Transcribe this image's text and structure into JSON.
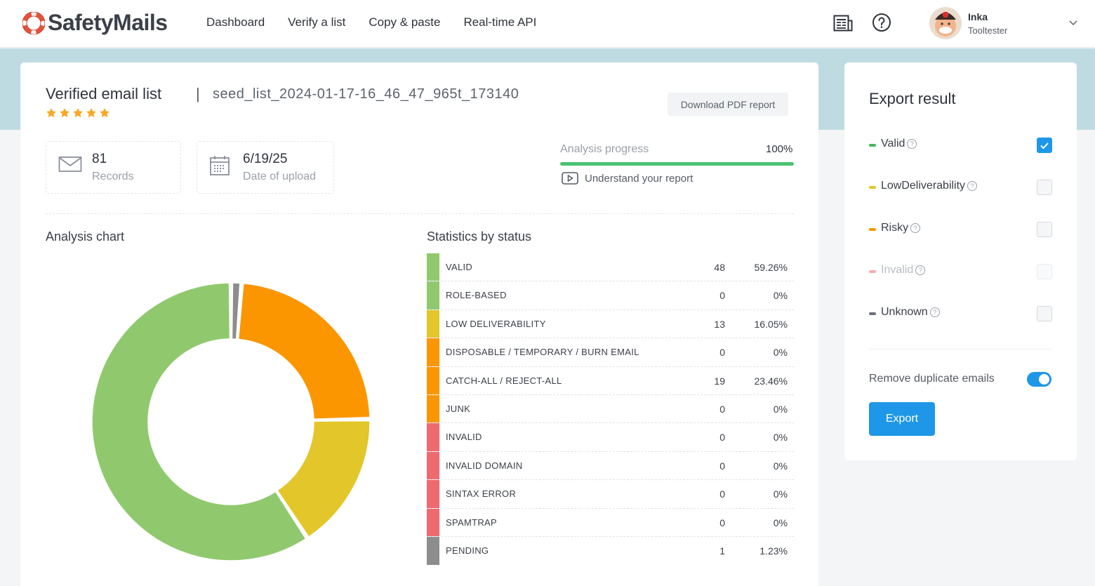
{
  "brand": {
    "name": "SafetyMails"
  },
  "nav": [
    "Dashboard",
    "Verify a list",
    "Copy & paste",
    "Real-time API"
  ],
  "header_icons": [
    "plans-icon",
    "help-icon"
  ],
  "user": {
    "name": "Inka",
    "company": "Tooltester"
  },
  "list": {
    "title": "Verified email list",
    "separator": "|",
    "name": "seed_list_2024-01-17-16_46_47_965t_173140",
    "rating": 5,
    "download_label": "Download PDF report"
  },
  "info": {
    "records_value": "81",
    "records_label": "Records",
    "date_value": "6/19/25",
    "date_label": "Date of upload"
  },
  "progress": {
    "label": "Analysis progress",
    "value_text": "100%",
    "value": 100,
    "link": "Understand your report"
  },
  "chart_title": "Analysis chart",
  "stats_title": "Statistics by status",
  "colors": {
    "valid": "#90c96d",
    "low": "#e3c629",
    "risky": "#fb9600",
    "invalid": "#ef6a6f",
    "pending": "#8d8d8d",
    "accent": "#1e97e8",
    "progress": "#49c374"
  },
  "stats": [
    {
      "label": "VALID",
      "count": "48",
      "pct": "59.26%",
      "color": "#90c96d"
    },
    {
      "label": "ROLE-BASED",
      "count": "0",
      "pct": "0%",
      "color": "#90c96d"
    },
    {
      "label": "LOW DELIVERABILITY",
      "count": "13",
      "pct": "16.05%",
      "color": "#e3c629"
    },
    {
      "label": "DISPOSABLE / TEMPORARY / BURN EMAIL",
      "count": "0",
      "pct": "0%",
      "color": "#fb9600"
    },
    {
      "label": "CATCH-ALL / REJECT-ALL",
      "count": "19",
      "pct": "23.46%",
      "color": "#fb9600"
    },
    {
      "label": "JUNK",
      "count": "0",
      "pct": "0%",
      "color": "#fb9600"
    },
    {
      "label": "INVALID",
      "count": "0",
      "pct": "0%",
      "color": "#ef6a6f"
    },
    {
      "label": "INVALID DOMAIN",
      "count": "0",
      "pct": "0%",
      "color": "#ef6a6f"
    },
    {
      "label": "SINTAX ERROR",
      "count": "0",
      "pct": "0%",
      "color": "#ef6a6f"
    },
    {
      "label": "SPAMTRAP",
      "count": "0",
      "pct": "0%",
      "color": "#ef6a6f"
    },
    {
      "label": "PENDING",
      "count": "1",
      "pct": "1.23%",
      "color": "#8d8d8d"
    }
  ],
  "chart_data": {
    "type": "pie",
    "donut": true,
    "categories": [
      "Pending",
      "Catch-all / Reject-all",
      "Low deliverability",
      "Valid"
    ],
    "values": [
      1,
      19,
      13,
      48
    ],
    "colors": [
      "#8d8d8d",
      "#fb9600",
      "#e3c629",
      "#90c96d"
    ]
  },
  "export": {
    "title": "Export result",
    "options": [
      {
        "label": "Valid",
        "checked": true,
        "color": "#49b65c",
        "muted": false
      },
      {
        "label": "LowDeliverability",
        "checked": false,
        "color": "#e3c629",
        "muted": false
      },
      {
        "label": "Risky",
        "checked": false,
        "color": "#fb9600",
        "muted": false
      },
      {
        "label": "Invalid",
        "checked": false,
        "color": "#ef6a6f",
        "muted": true
      },
      {
        "label": "Unknown",
        "checked": false,
        "color": "#6b7079",
        "muted": false
      }
    ],
    "dedupe_label": "Remove duplicate emails",
    "dedupe_on": true,
    "button": "Export"
  }
}
